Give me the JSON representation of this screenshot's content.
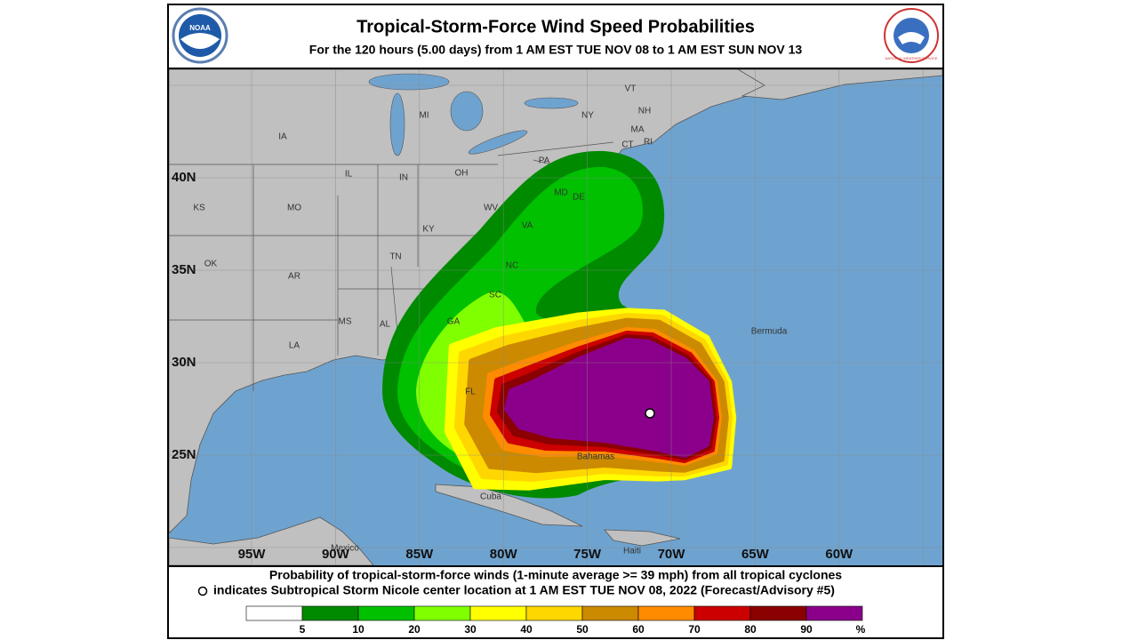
{
  "header": {
    "title": "Tropical-Storm-Force Wind Speed Probabilities",
    "subtitle": "For the 120 hours (5.00 days) from 1 AM EST TUE NOV 08 to 1 AM EST SUN NOV 13",
    "logos": [
      "NOAA",
      "NATIONAL WEATHER SERVICE"
    ]
  },
  "map": {
    "lat_labels": [
      "40N",
      "35N",
      "30N",
      "25N"
    ],
    "lon_labels": [
      "95W",
      "90W",
      "85W",
      "80W",
      "75W",
      "70W",
      "65W",
      "60W"
    ],
    "place_labels": [
      "IA",
      "MI",
      "NY",
      "VT",
      "NH",
      "MA",
      "CT",
      "RI",
      "PA",
      "IL",
      "IN",
      "OH",
      "KS",
      "MO",
      "WV",
      "MD",
      "DE",
      "KY",
      "VA",
      "OK",
      "TN",
      "NC",
      "AR",
      "SC",
      "MS",
      "AL",
      "GA",
      "LA",
      "FL",
      "Bermuda",
      "Bahamas",
      "Cuba",
      "Mexico",
      "Haiti"
    ]
  },
  "footer": {
    "line1": "Probability of tropical-storm-force winds (1-minute average >= 39 mph) from all tropical cyclones",
    "line2": "indicates Subtropical Storm Nicole center location at 1 AM EST TUE NOV 08, 2022 (Forecast/Advisory #5)"
  },
  "legend": {
    "ticks": [
      5,
      10,
      20,
      30,
      40,
      50,
      60,
      70,
      80,
      90
    ],
    "unit": "%",
    "colors": [
      "#ffffff",
      "#008a00",
      "#00c000",
      "#80ff00",
      "#ffff00",
      "#ffd700",
      "#cc8a00",
      "#ff8c00",
      "#cc0000",
      "#8b0000",
      "#8b008b"
    ]
  }
}
